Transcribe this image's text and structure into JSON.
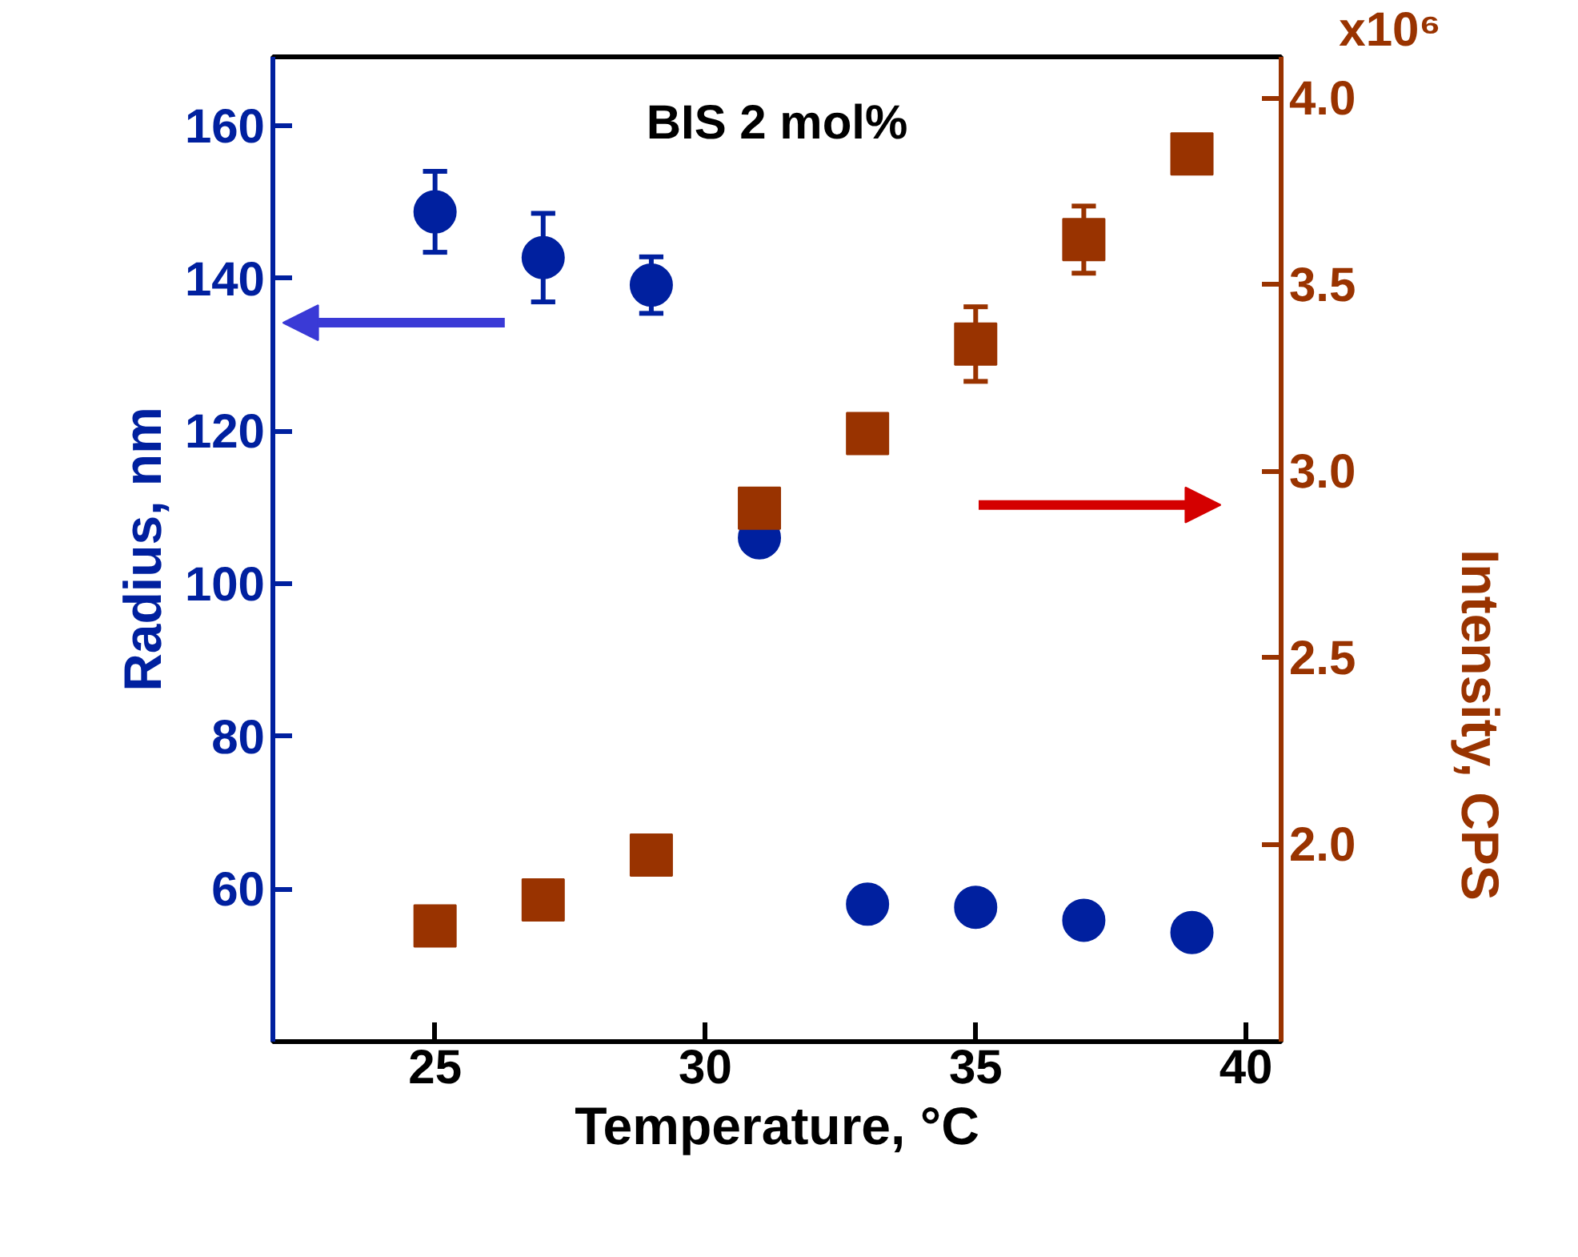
{
  "chart_data": {
    "type": "scatter",
    "title": "BIS 2 mol%",
    "xlabel": "Temperature, °C",
    "ylabel": "Radius, nm",
    "y2label": "Intensity, CPS",
    "x": [
      25,
      27,
      29,
      31,
      33,
      35,
      37,
      39
    ],
    "series": [
      {
        "color": "#00209f",
        "marker": "circle",
        "values": [
          148.7,
          142.7,
          139.1,
          106,
          58.0,
          57.6,
          55.9,
          54.3
        ],
        "errors": [
          5.3,
          5.8,
          3.7,
          null,
          1.5,
          null,
          null,
          null
        ]
      },
      {
        "color": "#993300",
        "marker": "square",
        "axis": "y2",
        "values": [
          1.78,
          1.85,
          1.97,
          2.9,
          3.1,
          3.34,
          3.62,
          3.85
        ],
        "errors": [
          null,
          null,
          null,
          0.05,
          null,
          0.1,
          0.09,
          0.04
        ]
      }
    ],
    "xlim": [
      22,
      40.65
    ],
    "xticks": [
      25,
      30,
      35,
      40
    ],
    "ylim": [
      40,
      169
    ],
    "yticks": [
      60,
      80,
      100,
      120,
      140,
      160
    ],
    "y2lim": [
      1.47,
      4.11
    ],
    "y2ticks": [
      {
        "value": 2.0,
        "label": "2.0"
      },
      {
        "value": 2.5,
        "label": "2.5"
      },
      {
        "value": 3.0,
        "label": "3.0"
      },
      {
        "value": 3.5,
        "label": "3.5"
      },
      {
        "value": 4.0,
        "label": "4.0"
      }
    ],
    "annotations": [
      "x10⁶"
    ],
    "grid": false
  }
}
